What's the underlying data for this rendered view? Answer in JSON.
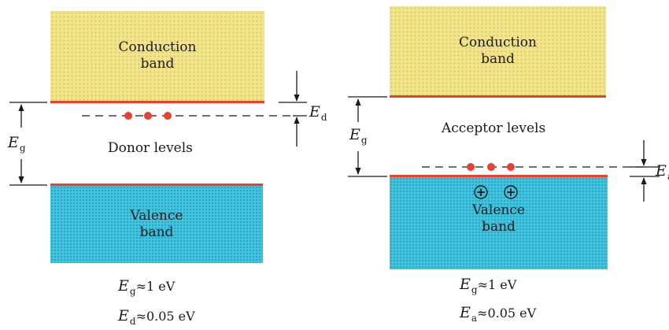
{
  "left": {
    "conduction_label": "Conduction\nband",
    "valence_label": "Valence\nband",
    "levels_label": "Donor levels",
    "gap_symbol": {
      "letter": "E",
      "sub": "g"
    },
    "level_symbol": {
      "letter": "E",
      "sub": "d"
    },
    "formula_gap": {
      "letter": "E",
      "sub": "g",
      "rest": "≈1 eV"
    },
    "formula_level": {
      "letter": "E",
      "sub": "d",
      "rest": "≈0.05 eV"
    }
  },
  "right": {
    "conduction_label": "Conduction\nband",
    "valence_label": "Valence\nband",
    "levels_label": "Acceptor levels",
    "gap_symbol": {
      "letter": "E",
      "sub": "g"
    },
    "level_symbol": {
      "letter": "E",
      "sub": "a"
    },
    "formula_gap": {
      "letter": "E",
      "sub": "g",
      "rest": "≈1 eV"
    },
    "formula_level": {
      "letter": "E",
      "sub": "a",
      "rest": "≈0.05 eV"
    },
    "hole_symbol": "+"
  },
  "colors": {
    "conduction_band": "#f2e488",
    "valence_band": "#3fc4df",
    "band_edge": "#e8412f",
    "impurity_dot": "#e8412f",
    "line": "#1a1a1a"
  }
}
